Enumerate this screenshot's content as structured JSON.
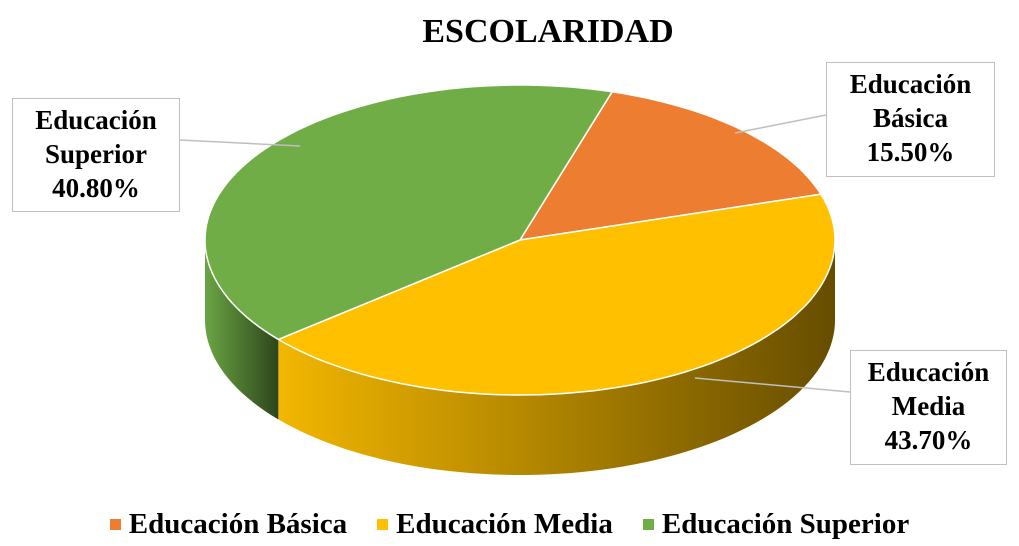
{
  "chart_data": {
    "type": "pie3d",
    "title": "ESCOLARIDAD",
    "categories": [
      "Educación Básica",
      "Educación Media",
      "Educación Superior"
    ],
    "values": [
      15.5,
      43.7,
      40.8
    ],
    "value_labels": [
      "15.50%",
      "43.70%",
      "40.80%"
    ],
    "colors": [
      "#ed7d31",
      "#ffc000",
      "#70ad47"
    ],
    "legend": "bottom"
  }
}
